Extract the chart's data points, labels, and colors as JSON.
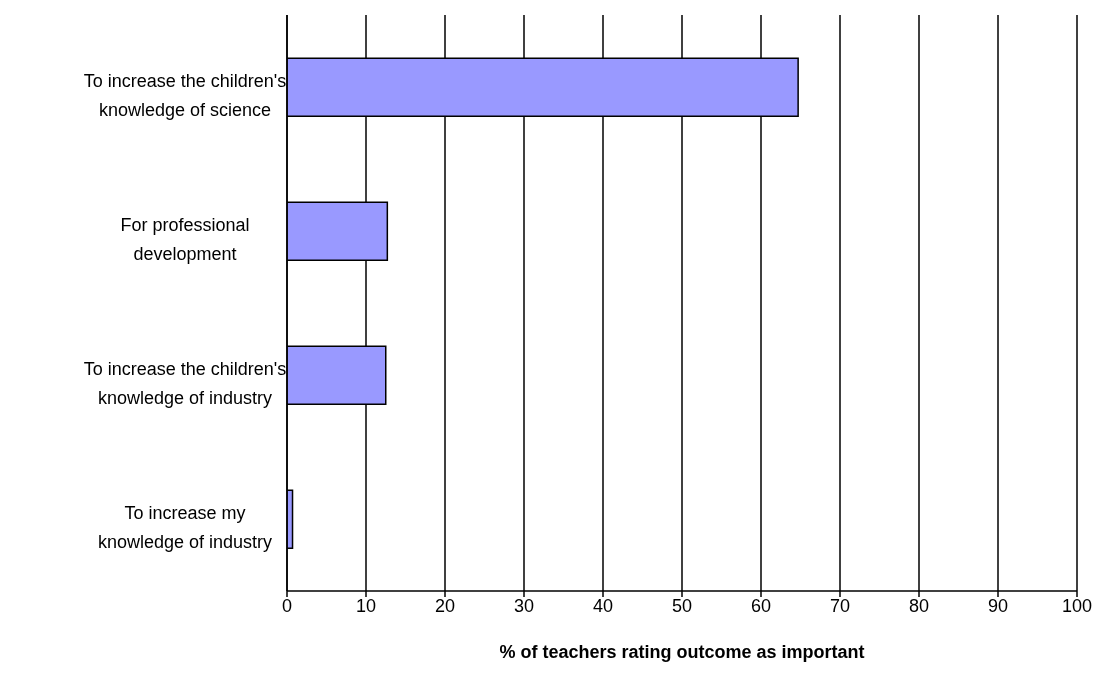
{
  "chart_data": {
    "type": "bar",
    "orientation": "horizontal",
    "xlabel": "% of teachers rating outcome as important",
    "categories": [
      "To increase the children's knowledge of science",
      "For professional development",
      "To increase the children's knowledge of industry",
      "To increase my knowledge of industry"
    ],
    "values": [
      64.7,
      12.7,
      12.5,
      0.7
    ],
    "color": "#9999ff",
    "xlim": [
      0,
      100
    ],
    "xticks": [
      0,
      10,
      20,
      30,
      40,
      50,
      60,
      70,
      80,
      90,
      100
    ],
    "grid": "x"
  }
}
